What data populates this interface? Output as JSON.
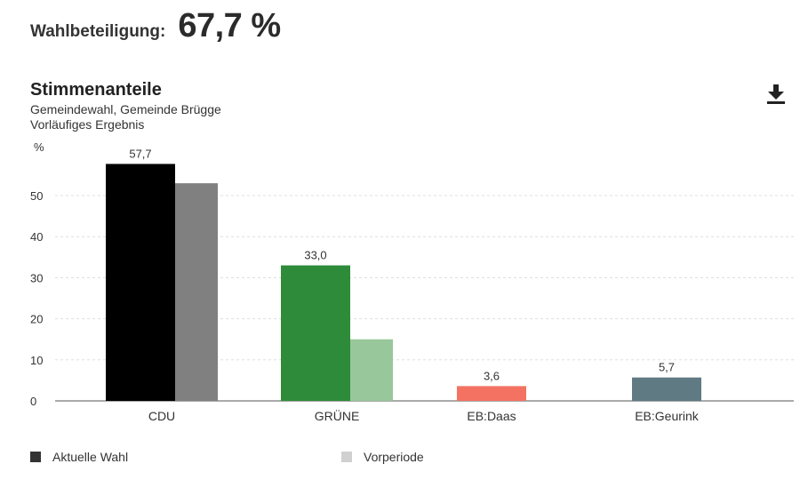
{
  "turnout": {
    "label": "Wahlbeteiligung:",
    "value": "67,7 %"
  },
  "header": {
    "download_icon": "download-icon"
  },
  "colors": {
    "current_legend": "#333333",
    "previous_legend": "#d0d0d0",
    "grid": "#dddddd",
    "axis": "#555555"
  },
  "chart_data": {
    "type": "bar",
    "title": "Stimmenanteile",
    "subtitle": "Gemeindewahl, Gemeinde Brügge",
    "subtitle2": "Vorläufiges Ergebnis",
    "ylabel": "%",
    "ylim": [
      0,
      60
    ],
    "yticks": [
      0,
      10,
      20,
      30,
      40,
      50
    ],
    "grid": true,
    "legend_position": "bottom-left",
    "categories": [
      "CDU",
      "GRÜNE",
      "EB:Daas",
      "EB:Geurink"
    ],
    "series": [
      {
        "name": "Aktuelle Wahl",
        "values": [
          57.7,
          33.0,
          3.6,
          5.7
        ],
        "labels": [
          "57,7",
          "33,0",
          "3,6",
          "5,7"
        ],
        "colors": [
          "#000000",
          "#2e8b3a",
          "#f47262",
          "#5f7a82"
        ]
      },
      {
        "name": "Vorperiode",
        "values": [
          53.0,
          15.0,
          null,
          null
        ],
        "colors": [
          "#808080",
          "#97c79a",
          null,
          null
        ]
      }
    ]
  }
}
